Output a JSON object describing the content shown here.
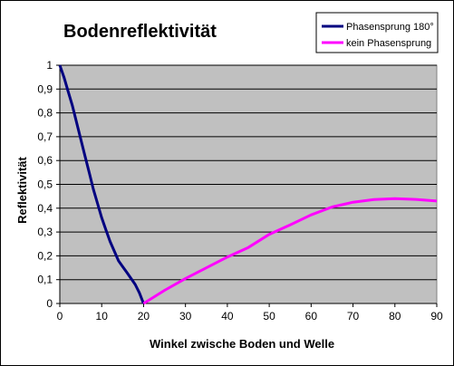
{
  "chart_data": {
    "type": "line",
    "title": "Bodenreflektivität",
    "xlabel": "Winkel  zwische Boden und Welle",
    "ylabel": "Reflektivität",
    "xlim": [
      0,
      90
    ],
    "ylim": [
      0,
      1
    ],
    "x_ticks": [
      "0",
      "10",
      "20",
      "30",
      "40",
      "50",
      "60",
      "70",
      "80",
      "90"
    ],
    "y_ticks": [
      "0",
      "0,1",
      "0,2",
      "0,3",
      "0,4",
      "0,5",
      "0,6",
      "0,7",
      "0,8",
      "0,9",
      "1"
    ],
    "grid": true,
    "legend_position": "top-right",
    "plot_background": "#c0c0c0",
    "series": [
      {
        "name": "Phasensprung 180°",
        "color": "#000080",
        "points": [
          [
            0,
            1
          ],
          [
            1,
            0.95
          ],
          [
            2,
            0.89
          ],
          [
            3,
            0.83
          ],
          [
            4,
            0.76
          ],
          [
            5,
            0.69
          ],
          [
            6,
            0.62
          ],
          [
            7,
            0.55
          ],
          [
            8,
            0.48
          ],
          [
            9,
            0.42
          ],
          [
            10,
            0.36
          ],
          [
            11,
            0.31
          ],
          [
            12,
            0.26
          ],
          [
            13,
            0.22
          ],
          [
            14,
            0.18
          ],
          [
            15,
            0.155
          ],
          [
            16,
            0.13
          ],
          [
            17,
            0.105
          ],
          [
            18,
            0.08
          ],
          [
            19,
            0.045
          ],
          [
            20,
            0.0
          ]
        ]
      },
      {
        "name": "kein Phasensprung",
        "color": "#ff00ff",
        "points": [
          [
            20,
            0
          ],
          [
            25,
            0.055
          ],
          [
            30,
            0.105
          ],
          [
            35,
            0.15
          ],
          [
            40,
            0.195
          ],
          [
            45,
            0.235
          ],
          [
            50,
            0.29
          ],
          [
            55,
            0.33
          ],
          [
            60,
            0.372
          ],
          [
            65,
            0.405
          ],
          [
            70,
            0.425
          ],
          [
            75,
            0.436
          ],
          [
            80,
            0.44
          ],
          [
            85,
            0.437
          ],
          [
            90,
            0.43
          ]
        ]
      }
    ]
  }
}
